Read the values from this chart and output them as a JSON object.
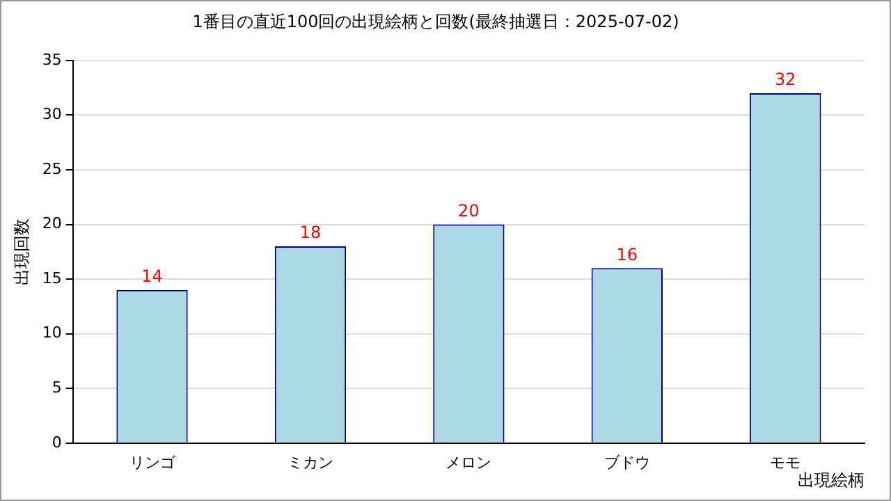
{
  "chart_data": {
    "type": "bar",
    "title": "1番目の直近100回の出現絵柄と回数(最終抽選日：2025-07-02)",
    "xlabel": "出現絵柄",
    "ylabel": "出現回数",
    "categories": [
      "リンゴ",
      "ミカン",
      "メロン",
      "ブドウ",
      "モモ"
    ],
    "values": [
      14,
      18,
      20,
      16,
      32
    ],
    "color": "#add8e6",
    "ylim": [
      0,
      35
    ],
    "yticks": [
      0,
      5,
      10,
      15,
      20,
      25,
      30,
      35
    ],
    "grid": "y",
    "data_labels": true
  }
}
